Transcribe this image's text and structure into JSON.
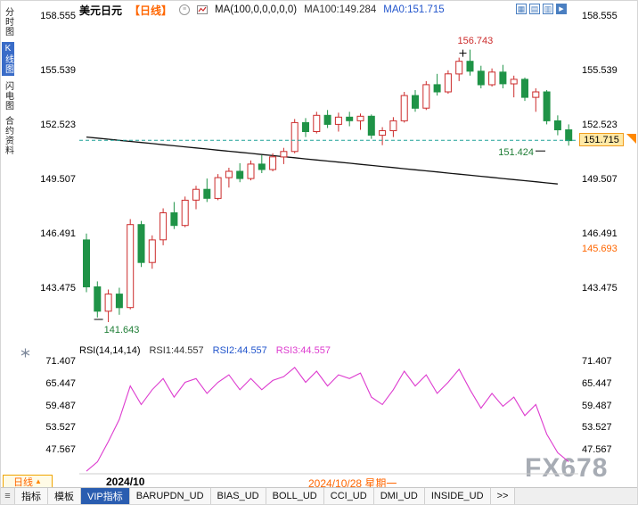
{
  "header": {
    "symbol": "美元日元",
    "period_label": "【日线】",
    "ma_settings": "MA(100,0,0,0,0,0)",
    "ma100": "MA100:149.284",
    "ma0": "MA0:151.715"
  },
  "toolbar": {
    "icons": [
      {
        "name": "layout-grid-icon",
        "glyph": "▦"
      },
      {
        "name": "layout-rows-icon",
        "glyph": "▤"
      },
      {
        "name": "layout-columns-icon",
        "glyph": "▥"
      },
      {
        "name": "play-icon",
        "glyph": "▶"
      }
    ]
  },
  "left_rail": {
    "items": [
      {
        "label": "分时图",
        "active": false
      },
      {
        "label": "K线图",
        "active": true
      },
      {
        "label": "闪电图",
        "active": false
      },
      {
        "label": "合约资料",
        "active": false
      }
    ]
  },
  "price_axis": {
    "labels": [
      "158.555",
      "155.539",
      "152.523",
      "149.507",
      "146.491",
      "143.475"
    ]
  },
  "price_markers": {
    "current": "151.715",
    "secondary": "145.693",
    "high": "156.743",
    "low": "141.643",
    "last_low": "151.424"
  },
  "rsi_panel": {
    "title": "RSI(14,14,14)",
    "rsi1": "RSI1:44.557",
    "rsi2": "RSI2:44.557",
    "rsi3": "RSI3:44.557",
    "axis_labels": [
      "71.407",
      "65.447",
      "59.487",
      "53.527",
      "47.567"
    ]
  },
  "time_axis": {
    "month_label": "2024/10",
    "date_label": "2024/10/28 星期一"
  },
  "period_selector": {
    "label": "日线",
    "arrow": "▲"
  },
  "watermark": "FX678",
  "bottom_tabs": {
    "items": [
      {
        "label": "指标",
        "active": false
      },
      {
        "label": "模板",
        "active": false
      },
      {
        "label": "VIP指标",
        "active": true
      },
      {
        "label": "BARUPDN_UD",
        "active": false
      },
      {
        "label": "BIAS_UD",
        "active": false
      },
      {
        "label": "BOLL_UD",
        "active": false
      },
      {
        "label": "CCI_UD",
        "active": false
      },
      {
        "label": "DMI_UD",
        "active": false
      },
      {
        "label": "INSIDE_UD",
        "active": false
      },
      {
        "label": ">>",
        "active": false
      }
    ]
  },
  "colors": {
    "up": "#cc2b2b",
    "down": "#1f9347",
    "rsi_line": "#dd3bcf",
    "current_price_line": "#1fa197",
    "ma_line": "#111111",
    "accent_orange": "#ff6600",
    "active_tab": "#2a5db0"
  },
  "chart_data": {
    "type": "candlestick",
    "title": "美元日元 日线",
    "y_axis_ticks": [
      158.555,
      155.539,
      152.523,
      149.507,
      146.491,
      143.475
    ],
    "candles": [
      [
        146.2,
        146.55,
        143.3,
        143.6
      ],
      [
        143.6,
        143.9,
        141.9,
        142.25
      ],
      [
        142.25,
        143.45,
        141.643,
        143.2
      ],
      [
        143.2,
        143.55,
        142.05,
        142.45
      ],
      [
        142.45,
        147.35,
        142.35,
        147.05
      ],
      [
        147.05,
        147.25,
        144.7,
        144.95
      ],
      [
        144.95,
        146.45,
        144.6,
        146.2
      ],
      [
        146.2,
        147.95,
        145.9,
        147.7
      ],
      [
        147.7,
        148.3,
        146.8,
        147.0
      ],
      [
        147.0,
        148.6,
        146.9,
        148.4
      ],
      [
        148.4,
        149.2,
        147.9,
        149.0
      ],
      [
        149.0,
        149.6,
        148.3,
        148.5
      ],
      [
        148.5,
        149.85,
        148.4,
        149.65
      ],
      [
        149.65,
        150.2,
        149.1,
        150.0
      ],
      [
        150.0,
        150.45,
        149.4,
        149.6
      ],
      [
        149.6,
        150.6,
        149.5,
        150.4
      ],
      [
        150.4,
        150.9,
        149.9,
        150.1
      ],
      [
        150.1,
        151.0,
        150.0,
        150.8
      ],
      [
        150.8,
        151.3,
        150.4,
        151.1
      ],
      [
        151.1,
        152.9,
        151.0,
        152.7
      ],
      [
        152.7,
        152.95,
        151.9,
        152.2
      ],
      [
        152.2,
        153.3,
        152.1,
        153.1
      ],
      [
        153.1,
        153.4,
        152.4,
        152.6
      ],
      [
        152.6,
        153.25,
        152.2,
        153.0
      ],
      [
        153.0,
        153.3,
        152.5,
        152.8
      ],
      [
        152.8,
        153.2,
        152.3,
        153.05
      ],
      [
        153.05,
        153.15,
        151.8,
        152.0
      ],
      [
        152.0,
        152.45,
        151.45,
        152.25
      ],
      [
        152.25,
        153.0,
        151.9,
        152.8
      ],
      [
        152.8,
        154.4,
        152.7,
        154.2
      ],
      [
        154.2,
        154.5,
        153.3,
        153.5
      ],
      [
        153.5,
        155.0,
        153.4,
        154.8
      ],
      [
        154.8,
        155.4,
        154.2,
        154.4
      ],
      [
        154.4,
        155.6,
        154.3,
        155.4
      ],
      [
        155.4,
        156.3,
        155.0,
        156.1
      ],
      [
        156.1,
        156.743,
        155.3,
        155.55
      ],
      [
        155.55,
        155.85,
        154.6,
        154.8
      ],
      [
        154.8,
        155.7,
        154.7,
        155.5
      ],
      [
        155.5,
        155.9,
        154.6,
        154.85
      ],
      [
        154.85,
        155.3,
        154.1,
        155.1
      ],
      [
        155.1,
        155.2,
        153.9,
        154.1
      ],
      [
        154.1,
        154.6,
        153.3,
        154.4
      ],
      [
        154.4,
        154.5,
        152.6,
        152.8
      ],
      [
        152.8,
        153.1,
        152.0,
        152.3
      ],
      [
        152.3,
        152.6,
        151.424,
        151.7
      ]
    ],
    "ma100_line": {
      "label": "MA100",
      "start": 151.9,
      "end": 149.3,
      "current": 149.284
    },
    "current_price": 151.715,
    "secondary_price": 145.693,
    "high_annotation": 156.743,
    "low_annotation": 141.643,
    "last_low_annotation": 151.424,
    "indicator": {
      "type": "line",
      "name": "RSI(14,14,14)",
      "current": 44.557,
      "y_ticks": [
        71.407,
        65.447,
        59.487,
        53.527,
        47.567
      ],
      "values": [
        42.0,
        44.5,
        50.0,
        56.0,
        65.0,
        60.0,
        64.0,
        67.0,
        62.0,
        66.0,
        67.0,
        63.0,
        66.0,
        68.0,
        64.0,
        67.0,
        64.0,
        66.5,
        67.5,
        70.0,
        66.0,
        69.0,
        65.0,
        68.0,
        67.0,
        68.5,
        62.0,
        60.0,
        64.0,
        69.0,
        65.0,
        68.0,
        63.0,
        66.0,
        69.5,
        64.0,
        59.0,
        63.0,
        59.5,
        62.0,
        57.0,
        60.0,
        52.0,
        47.0,
        44.557
      ]
    },
    "x_axis": {
      "month": "2024/10",
      "highlight_date": "2024/10/28 星期一"
    }
  }
}
